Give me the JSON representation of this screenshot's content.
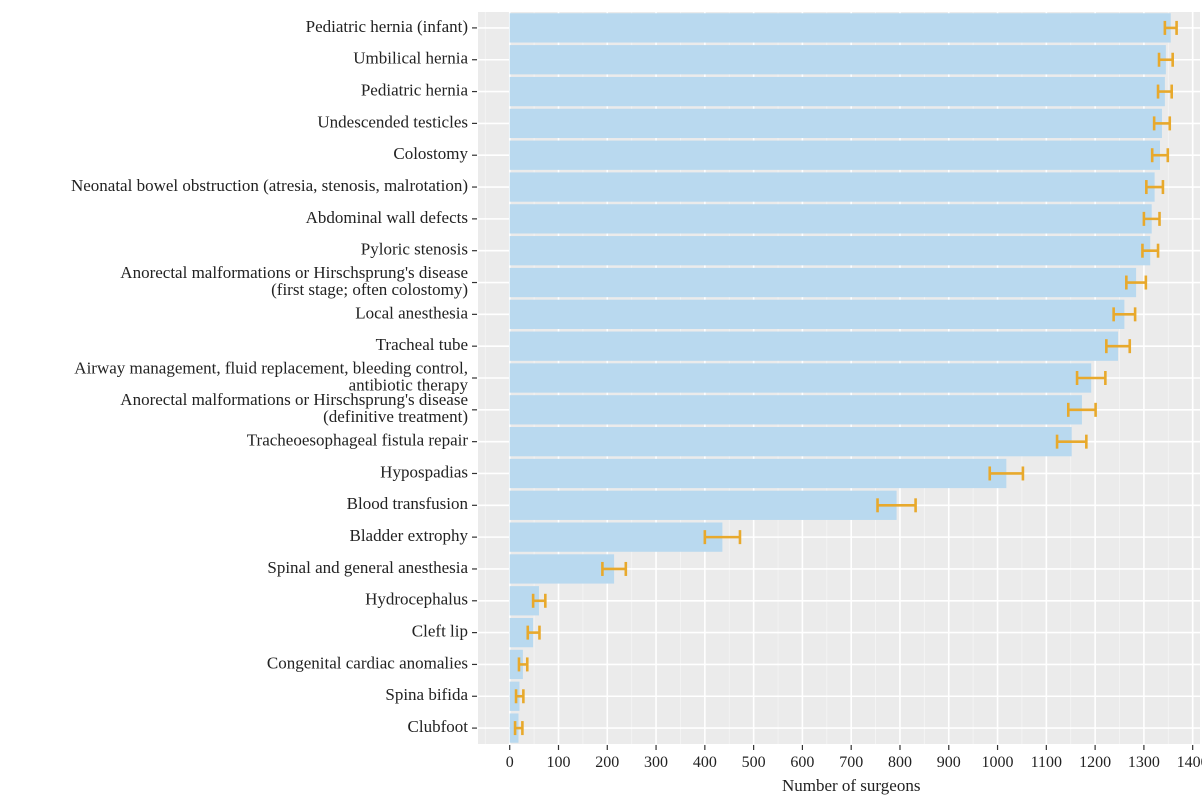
{
  "chart_data": {
    "type": "bar",
    "orientation": "horizontal",
    "xlabel": "Number of surgeons",
    "ylabel": "",
    "title": "",
    "xlim": [
      -65,
      1415
    ],
    "x_ticks": [
      0,
      100,
      200,
      300,
      400,
      500,
      600,
      700,
      800,
      900,
      1000,
      1100,
      1200,
      1300,
      1400
    ],
    "grid": true,
    "bar_color": "#b9d9ef",
    "error_bar_color": "#e8a92c",
    "panel_color": "#ebebeb",
    "categories": [
      [
        "Pediatric hernia (infant)"
      ],
      [
        "Umbilical hernia"
      ],
      [
        "Pediatric hernia"
      ],
      [
        "Undescended testicles"
      ],
      [
        "Colostomy"
      ],
      [
        "Neonatal bowel obstruction (atresia, stenosis, malrotation)"
      ],
      [
        "Abdominal wall defects"
      ],
      [
        "Pyloric stenosis"
      ],
      [
        "Anorectal malformations or Hirschsprung's disease",
        "(first stage; often colostomy)"
      ],
      [
        "Local anesthesia"
      ],
      [
        "Tracheal tube"
      ],
      [
        "Airway management, fluid replacement, bleeding control,",
        "antibiotic therapy"
      ],
      [
        "Anorectal malformations or Hirschsprung's disease",
        "(definitive treatment)"
      ],
      [
        "Tracheoesophageal fistula repair"
      ],
      [
        "Hypospadias"
      ],
      [
        "Blood transfusion"
      ],
      [
        "Bladder extrophy"
      ],
      [
        "Spinal and general anesthesia"
      ],
      [
        "Hydrocephalus"
      ],
      [
        "Cleft lip"
      ],
      [
        "Congenital cardiac anomalies"
      ],
      [
        "Spina bifida"
      ],
      [
        "Clubfoot"
      ]
    ],
    "series": [
      {
        "values": [
          1355,
          1345,
          1343,
          1337,
          1333,
          1322,
          1316,
          1313,
          1284,
          1260,
          1247,
          1192,
          1173,
          1152,
          1018,
          793,
          436,
          214,
          60,
          48,
          27,
          20,
          18
        ],
        "error_low": [
          1343,
          1331,
          1329,
          1321,
          1317,
          1305,
          1300,
          1297,
          1264,
          1238,
          1223,
          1163,
          1145,
          1122,
          984,
          754,
          400,
          190,
          48,
          37,
          19,
          13,
          11
        ],
        "error_high": [
          1367,
          1359,
          1357,
          1353,
          1349,
          1339,
          1332,
          1329,
          1304,
          1282,
          1271,
          1221,
          1201,
          1182,
          1052,
          832,
          472,
          238,
          73,
          61,
          36,
          28,
          26
        ]
      }
    ]
  }
}
